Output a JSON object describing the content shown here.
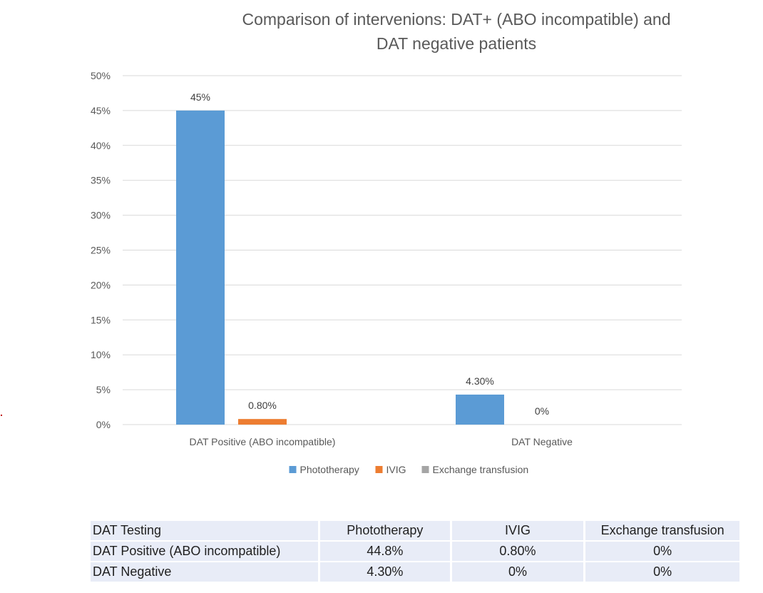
{
  "chart_data": {
    "type": "bar",
    "title_lines": [
      "Comparison of intervenions: DAT+ (ABO incompatible) and",
      "DAT negative patients"
    ],
    "categories": [
      "DAT Positive (ABO incompatible)",
      "DAT Negative"
    ],
    "series": [
      {
        "name": "Phototherapy",
        "color": "#5b9bd5",
        "values": [
          45,
          4.3
        ],
        "labels": [
          "45%",
          "4.30%"
        ]
      },
      {
        "name": "IVIG",
        "color": "#ed7d31",
        "values": [
          0.8,
          0
        ],
        "labels": [
          "0.80%",
          "0%"
        ]
      },
      {
        "name": "Exchange transfusion",
        "color": "#a5a5a5",
        "values": [
          0,
          0
        ],
        "labels": [
          "",
          ""
        ]
      }
    ],
    "ylim": [
      0,
      50
    ],
    "yticks": [
      "0%",
      "5%",
      "10%",
      "15%",
      "20%",
      "25%",
      "30%",
      "35%",
      "40%",
      "45%",
      "50%"
    ],
    "gridlines": true,
    "legend_position": "bottom",
    "gridline_color": "#d9d9d9"
  },
  "table": {
    "header": [
      "DAT Testing",
      "Phototherapy",
      "IVIG",
      "Exchange transfusion"
    ],
    "rows": [
      [
        "DAT Positive (ABO incompatible)",
        "44.8%",
        "0.80%",
        "0%"
      ],
      [
        "DAT Negative",
        "4.30%",
        "0%",
        "0%"
      ]
    ]
  }
}
